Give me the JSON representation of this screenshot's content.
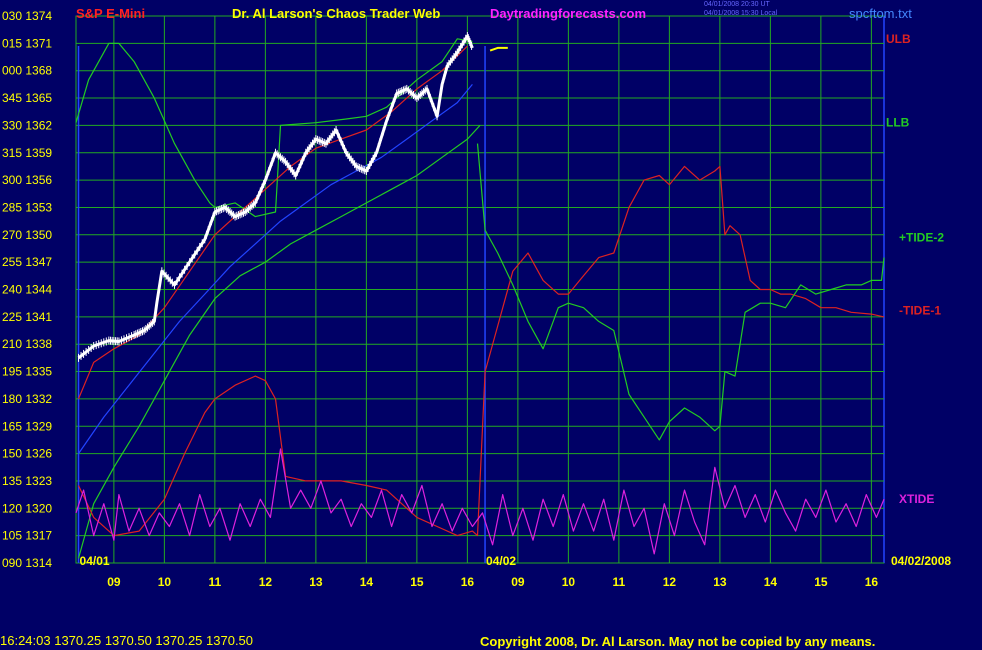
{
  "header": {
    "instrument": "S&P E-Mini",
    "title": "Dr. Al Larson's Chaos Trader Web",
    "site": "Daytradingforecasts.com",
    "timestamp1": "04/01/2008 20:30 UT",
    "timestamp2": "04/01/2008 15:30 Local",
    "file": "spcftom.txt"
  },
  "footer": {
    "quote": "16:24:03  1370.25 1370.50 1370.25 1370.50",
    "copyright": "Copyright 2008, Dr. Al Larson. May not be copied by any means."
  },
  "colors": {
    "background": "#000066",
    "grid": "#22aa22",
    "price_bars": "#ffffff",
    "ulb": "#dd2222",
    "llb": "#22cc22",
    "tide2": "#22cc22",
    "tide1": "#dd2222",
    "xtide": "#dd22dd",
    "avg_blue": "#2244ff",
    "forecast": "#ffff00"
  },
  "chart_data": {
    "type": "line",
    "y_labels": [
      "030 1374",
      "015 1371",
      "000 1368",
      "345 1365",
      "330 1362",
      "315 1359",
      "300 1356",
      "285 1353",
      "270 1350",
      "255 1347",
      "240 1344",
      "225 1341",
      "210 1338",
      "195 1335",
      "180 1332",
      "165 1329",
      "150 1326",
      "135 1323",
      "120 1320",
      "105 1317",
      "090 1314"
    ],
    "ylim": [
      1314,
      1374
    ],
    "x_ticks": [
      "09",
      "10",
      "11",
      "12",
      "13",
      "14",
      "15",
      "16",
      "09",
      "10",
      "11",
      "12",
      "13",
      "14",
      "15",
      "16"
    ],
    "x_range": [
      8.25,
      24.25
    ],
    "date_markers": [
      {
        "label": "04/01",
        "x": 8.3
      },
      {
        "label": "04/02",
        "x": 16.35
      }
    ],
    "end_date": "04/02/2008",
    "legend": [
      {
        "name": "ULB",
        "color": "#dd2222",
        "y": 1371.5
      },
      {
        "name": "LLB",
        "color": "#22cc22",
        "y": 1362.3
      },
      {
        "name": "+TIDE-2",
        "color": "#22cc22",
        "y": 1349.7
      },
      {
        "name": "-TIDE-1",
        "color": "#dd2222",
        "y": 1341.7
      },
      {
        "name": "XTIDE",
        "color": "#dd22dd",
        "y": 1321.0
      }
    ],
    "series": [
      {
        "name": "price",
        "style": "bars",
        "color": "#ffffff",
        "x": [
          8.3,
          8.6,
          8.9,
          9.1,
          9.4,
          9.6,
          9.8,
          9.85,
          9.95,
          10.2,
          10.5,
          10.8,
          11.0,
          11.2,
          11.4,
          11.6,
          11.8,
          12.0,
          12.2,
          12.4,
          12.6,
          12.8,
          13.0,
          13.2,
          13.4,
          13.6,
          13.8,
          14.0,
          14.2,
          14.4,
          14.6,
          14.8,
          15.0,
          15.2,
          15.4,
          15.5,
          15.6,
          15.8,
          16.0,
          16.1
        ],
        "values": [
          1336.5,
          1337.8,
          1338.4,
          1338.3,
          1339.0,
          1339.5,
          1340.5,
          1342.5,
          1346.0,
          1344.5,
          1347.0,
          1349.5,
          1352.5,
          1353.0,
          1352.0,
          1352.5,
          1353.5,
          1356.0,
          1359.0,
          1358.0,
          1356.5,
          1359.0,
          1360.5,
          1360.0,
          1361.5,
          1359.0,
          1357.5,
          1357.0,
          1359.0,
          1362.5,
          1365.5,
          1366.0,
          1365.0,
          1366.0,
          1363.0,
          1366.5,
          1368.5,
          1370.0,
          1371.8,
          1370.5
        ]
      },
      {
        "name": "ULB",
        "color": "#dd2222",
        "x": [
          8.3,
          8.6,
          9.0,
          9.5,
          10.0,
          10.5,
          11.0,
          11.5,
          12.0,
          12.5,
          13.0,
          13.5,
          14.0,
          14.5,
          15.0,
          15.5,
          16.0
        ],
        "values": [
          1332.0,
          1336.0,
          1337.5,
          1339.0,
          1342.0,
          1346.0,
          1350.0,
          1352.5,
          1355.0,
          1357.5,
          1359.5,
          1360.5,
          1361.5,
          1363.5,
          1366.0,
          1368.0,
          1370.7
        ]
      },
      {
        "name": "LLB",
        "color": "#22cc22",
        "x": [
          8.25,
          8.5,
          8.9,
          9.1,
          9.4,
          9.8,
          10.2,
          10.6,
          10.9,
          11.0,
          11.4,
          11.8,
          12.2,
          12.3,
          13.0,
          13.6,
          14.0,
          14.4,
          15.0,
          15.5,
          15.8,
          16.1
        ],
        "values": [
          1362.3,
          1367.0,
          1371.0,
          1371.0,
          1369.0,
          1365.0,
          1360.0,
          1356.0,
          1353.5,
          1353.0,
          1353.5,
          1352.0,
          1352.5,
          1362.0,
          1362.3,
          1362.7,
          1363.0,
          1364.0,
          1367.0,
          1369.0,
          1371.5,
          1371.2
        ]
      },
      {
        "name": "LLB-low",
        "color": "#22cc22",
        "x": [
          8.3,
          8.6,
          9.0,
          9.5,
          10.0,
          10.5,
          11.0,
          11.5,
          12.0,
          12.5,
          13.0,
          13.5,
          14.0,
          14.5,
          15.0,
          15.5,
          16.0,
          16.25
        ],
        "values": [
          1314.5,
          1320.5,
          1324.5,
          1329.0,
          1334.0,
          1339.0,
          1343.0,
          1345.5,
          1347.0,
          1349.0,
          1350.5,
          1352.0,
          1353.5,
          1355.0,
          1356.5,
          1358.5,
          1360.5,
          1362.0
        ]
      },
      {
        "name": "avg",
        "color": "#2244ff",
        "x": [
          8.3,
          8.8,
          9.3,
          9.8,
          10.3,
          10.8,
          11.3,
          11.8,
          12.3,
          12.8,
          13.3,
          13.8,
          14.3,
          14.8,
          15.3,
          15.8,
          16.1
        ],
        "values": [
          1326.0,
          1330.0,
          1333.5,
          1337.0,
          1340.5,
          1343.5,
          1346.5,
          1349.0,
          1351.5,
          1353.5,
          1355.5,
          1357.0,
          1358.5,
          1360.5,
          1362.5,
          1364.5,
          1366.5
        ]
      },
      {
        "name": "+TIDE-2",
        "color": "#22cc22",
        "x": [
          16.2,
          16.35,
          16.6,
          16.9,
          17.2,
          17.5,
          17.8,
          18.0,
          18.3,
          18.6,
          18.9,
          19.2,
          19.5,
          19.8,
          20.0,
          20.3,
          20.6,
          20.9,
          21.0,
          21.1,
          21.3,
          21.5,
          21.8,
          22.0,
          22.3,
          22.6,
          22.9,
          23.2,
          23.5,
          23.8,
          24.0,
          24.2,
          24.25
        ],
        "values": [
          1360.0,
          1350.5,
          1348.0,
          1344.5,
          1340.5,
          1337.5,
          1342.0,
          1342.5,
          1342.0,
          1340.5,
          1339.5,
          1332.5,
          1330.0,
          1327.5,
          1329.5,
          1331.0,
          1330.0,
          1328.5,
          1329.0,
          1335.0,
          1334.5,
          1341.5,
          1342.5,
          1342.5,
          1342.0,
          1344.5,
          1343.5,
          1344.0,
          1344.5,
          1344.5,
          1345.0,
          1345.0,
          1347.5
        ]
      },
      {
        "name": "-TIDE-1",
        "color": "#dd2222",
        "x": [
          8.3,
          8.6,
          9.0,
          9.5,
          10.0,
          10.4,
          10.8,
          11.0,
          11.4,
          11.8,
          12.0,
          12.2,
          12.4,
          12.8,
          13.0,
          13.5,
          14.0,
          14.4,
          14.8,
          15.0,
          15.4,
          15.8,
          16.1,
          16.2,
          16.35,
          16.6,
          16.9,
          17.2,
          17.5,
          17.8,
          18.0,
          18.3,
          18.6,
          18.9,
          19.2,
          19.5,
          19.8,
          20.0,
          20.3,
          20.6,
          20.9,
          21.0,
          21.1,
          21.2,
          21.4,
          21.6,
          21.8,
          22.0,
          22.2,
          22.4,
          22.7,
          23.0,
          23.3,
          23.6,
          24.0,
          24.25
        ],
        "values": [
          1322.5,
          1319.0,
          1317.0,
          1317.5,
          1321.0,
          1326.0,
          1330.5,
          1332.0,
          1333.5,
          1334.5,
          1334.0,
          1332.0,
          1323.5,
          1323.0,
          1323.0,
          1323.0,
          1322.5,
          1322.0,
          1320.0,
          1319.0,
          1318.0,
          1317.0,
          1317.5,
          1317.0,
          1335.0,
          1340.0,
          1346.0,
          1348.0,
          1345.0,
          1343.5,
          1343.5,
          1345.5,
          1347.5,
          1348.0,
          1353.0,
          1356.0,
          1356.5,
          1355.5,
          1357.5,
          1356.0,
          1357.0,
          1357.5,
          1350.0,
          1351.0,
          1350.0,
          1345.0,
          1344.0,
          1344.0,
          1343.5,
          1343.5,
          1343.0,
          1342.0,
          1342.0,
          1341.5,
          1341.3,
          1341.0
        ]
      },
      {
        "name": "XTIDE",
        "color": "#dd22dd",
        "x": [
          8.25,
          8.4,
          8.6,
          8.8,
          9.0,
          9.1,
          9.3,
          9.5,
          9.7,
          9.9,
          10.1,
          10.3,
          10.5,
          10.7,
          10.9,
          11.1,
          11.3,
          11.5,
          11.7,
          11.9,
          12.1,
          12.3,
          12.5,
          12.7,
          12.9,
          13.1,
          13.3,
          13.5,
          13.7,
          13.9,
          14.1,
          14.3,
          14.5,
          14.7,
          14.9,
          15.1,
          15.3,
          15.5,
          15.7,
          15.9,
          16.1,
          16.3,
          16.5,
          16.7,
          16.9,
          17.1,
          17.3,
          17.5,
          17.7,
          17.9,
          18.1,
          18.3,
          18.5,
          18.7,
          18.9,
          19.1,
          19.3,
          19.5,
          19.7,
          19.9,
          20.1,
          20.3,
          20.5,
          20.7,
          20.9,
          21.1,
          21.3,
          21.5,
          21.7,
          21.9,
          22.1,
          22.3,
          22.5,
          22.7,
          22.9,
          23.1,
          23.3,
          23.5,
          23.7,
          23.9,
          24.1,
          24.25
        ],
        "values": [
          1319.5,
          1322.0,
          1317.0,
          1320.5,
          1316.5,
          1321.5,
          1317.5,
          1320.0,
          1317.0,
          1319.5,
          1318.0,
          1320.5,
          1317.0,
          1321.5,
          1318.0,
          1320.0,
          1316.5,
          1320.5,
          1318.0,
          1321.0,
          1319.0,
          1326.5,
          1320.0,
          1322.0,
          1320.0,
          1323.0,
          1319.5,
          1321.0,
          1318.0,
          1320.5,
          1319.0,
          1322.0,
          1318.0,
          1321.5,
          1319.5,
          1322.5,
          1318.0,
          1320.5,
          1317.5,
          1320.0,
          1318.0,
          1319.5,
          1316.0,
          1321.5,
          1317.0,
          1320.0,
          1316.5,
          1321.0,
          1318.0,
          1321.5,
          1317.5,
          1320.5,
          1317.5,
          1321.0,
          1316.5,
          1322.0,
          1318.0,
          1320.0,
          1315.0,
          1320.5,
          1317.0,
          1322.0,
          1318.5,
          1316.0,
          1324.5,
          1320.0,
          1322.5,
          1319.0,
          1321.5,
          1318.5,
          1322.0,
          1319.5,
          1317.5,
          1321.0,
          1319.0,
          1322.0,
          1318.5,
          1320.5,
          1318.0,
          1321.5,
          1319.0,
          1321.0
        ]
      },
      {
        "name": "forecast",
        "color": "#ffff00",
        "x": [
          16.45,
          16.6,
          16.8
        ],
        "values": [
          1370.2,
          1370.5,
          1370.5
        ]
      }
    ]
  }
}
